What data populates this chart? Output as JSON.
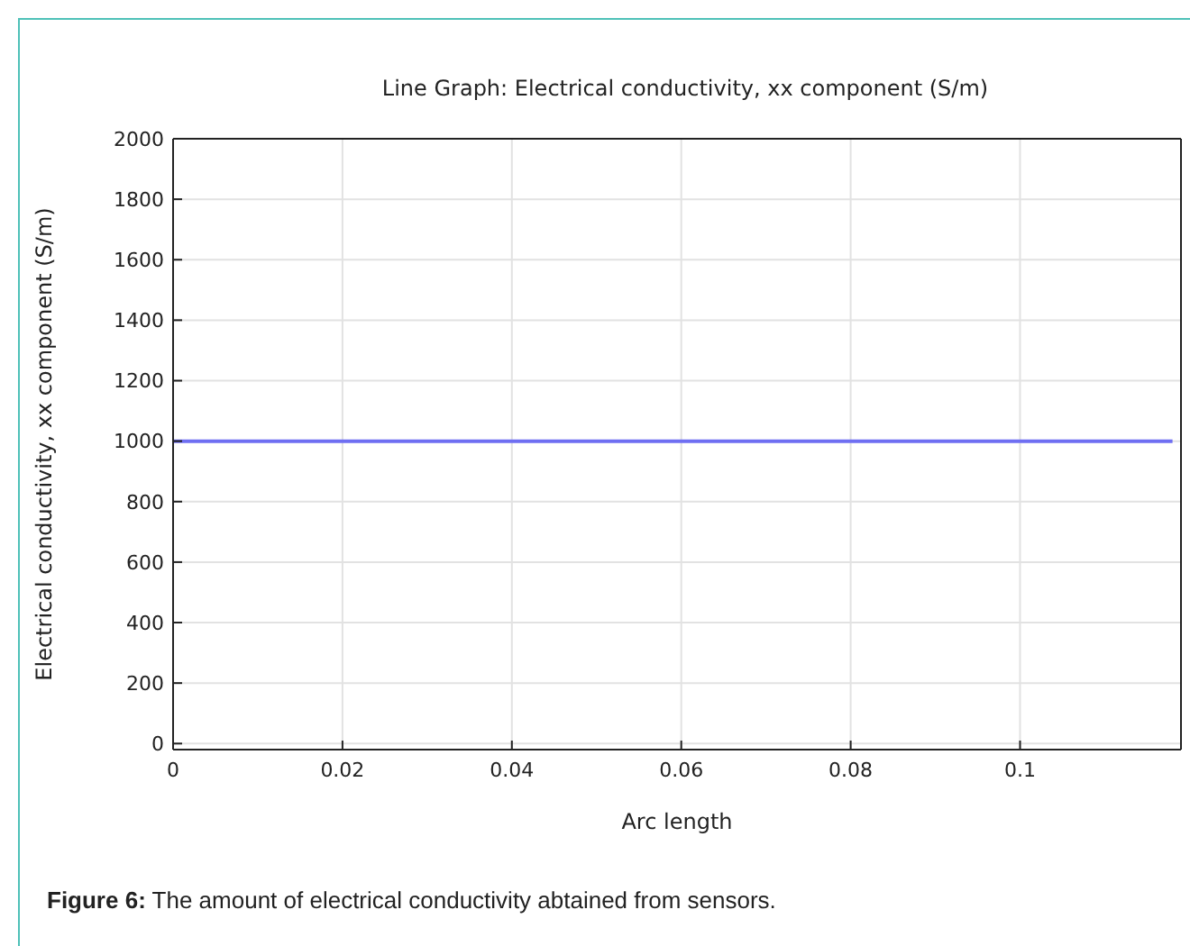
{
  "chart_data": {
    "type": "line",
    "title": "Line Graph: Electrical conductivity, xx component (S/m)",
    "xlabel": "Arc length",
    "ylabel": "Electrical conductivity, xx component (S/m)",
    "annotations": [
      "Figure 6: The amount of electrical conductivity abtained from sensors."
    ],
    "x": [
      0,
      0.118
    ],
    "series": [
      {
        "color": "#6f6ff2",
        "values": [
          1000,
          1000
        ]
      }
    ],
    "xlim": [
      0,
      0.119
    ],
    "xticks": [
      0,
      0.02,
      0.04,
      0.06,
      0.08,
      0.1
    ],
    "ylim": [
      -20,
      2000
    ],
    "yticks": [
      0,
      200,
      400,
      600,
      800,
      1000,
      1200,
      1400,
      1600,
      1800,
      2000
    ],
    "grid": true,
    "marker": "none",
    "line_style": "solid",
    "legend": false
  }
}
